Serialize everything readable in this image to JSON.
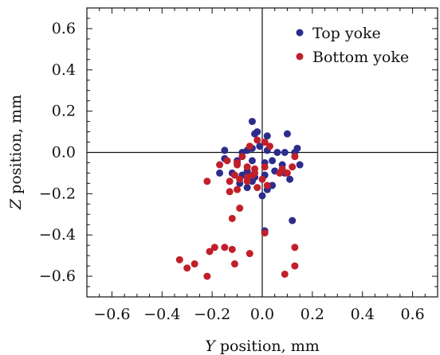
{
  "chart_data": {
    "type": "scatter",
    "xlabel_var": "Y",
    "xlabel_rest": " position, mm",
    "ylabel_var": "Z",
    "ylabel_rest": " position, mm",
    "xlim": [
      -0.7,
      0.7
    ],
    "ylim": [
      -0.7,
      0.7
    ],
    "xticks": [
      -0.6,
      -0.4,
      -0.2,
      0.0,
      0.2,
      0.4,
      0.6
    ],
    "xtick_labels": [
      "−0.6",
      "−0.4",
      "−0.2",
      "0.0",
      "0.2",
      "0.4",
      "0.6"
    ],
    "yticks": [
      0.6,
      0.4,
      0.2,
      0.0,
      -0.2,
      -0.4,
      -0.6
    ],
    "ytick_labels": [
      "0.6",
      "0.4",
      "0.2",
      "0.0",
      "−0.2",
      "−0.4",
      "−0.6"
    ],
    "grid": false,
    "crosshair_at_zero": true,
    "legend_position": "top-right",
    "series": [
      {
        "name": "Top yoke",
        "color": "#2c2c8c",
        "points": [
          [
            -0.04,
            0.15
          ],
          [
            -0.02,
            0.1
          ],
          [
            -0.03,
            0.09
          ],
          [
            0.02,
            0.08
          ],
          [
            0.1,
            0.09
          ],
          [
            -0.15,
            0.01
          ],
          [
            -0.08,
            0.0
          ],
          [
            -0.06,
            0.01
          ],
          [
            -0.04,
            0.02
          ],
          [
            -0.01,
            0.03
          ],
          [
            0.02,
            0.01
          ],
          [
            0.06,
            0.0
          ],
          [
            0.09,
            0.0
          ],
          [
            0.14,
            0.02
          ],
          [
            -0.15,
            -0.03
          ],
          [
            -0.1,
            -0.04
          ],
          [
            -0.04,
            -0.04
          ],
          [
            0.01,
            -0.05
          ],
          [
            0.04,
            -0.04
          ],
          [
            0.08,
            -0.06
          ],
          [
            0.15,
            -0.06
          ],
          [
            -0.17,
            -0.1
          ],
          [
            -0.12,
            -0.1
          ],
          [
            -0.08,
            -0.11
          ],
          [
            -0.06,
            -0.09
          ],
          [
            -0.03,
            -0.12
          ],
          [
            0.01,
            -0.11
          ],
          [
            0.05,
            -0.09
          ],
          [
            0.09,
            -0.1
          ],
          [
            -0.09,
            -0.15
          ],
          [
            -0.06,
            -0.17
          ],
          [
            -0.04,
            -0.14
          ],
          [
            0.04,
            -0.16
          ],
          [
            0.11,
            -0.13
          ],
          [
            0.0,
            -0.21
          ],
          [
            0.02,
            -0.18
          ],
          [
            0.12,
            -0.33
          ],
          [
            0.01,
            -0.38
          ],
          [
            0.13,
            0.0
          ]
        ]
      },
      {
        "name": "Bottom yoke",
        "color": "#c0202a",
        "points": [
          [
            -0.02,
            0.06
          ],
          [
            0.01,
            0.05
          ],
          [
            0.03,
            0.03
          ],
          [
            -0.05,
            0.03
          ],
          [
            -0.08,
            -0.02
          ],
          [
            -0.14,
            -0.04
          ],
          [
            -0.17,
            -0.06
          ],
          [
            -0.1,
            -0.06
          ],
          [
            -0.1,
            -0.05
          ],
          [
            -0.06,
            -0.07
          ],
          [
            -0.03,
            -0.08
          ],
          [
            0.01,
            -0.07
          ],
          [
            0.08,
            -0.08
          ],
          [
            0.12,
            -0.07
          ],
          [
            -0.11,
            -0.11
          ],
          [
            -0.06,
            -0.12
          ],
          [
            -0.04,
            -0.11
          ],
          [
            -0.03,
            -0.1
          ],
          [
            0.0,
            -0.13
          ],
          [
            0.07,
            -0.1
          ],
          [
            0.1,
            -0.1
          ],
          [
            0.13,
            -0.02
          ],
          [
            -0.22,
            -0.14
          ],
          [
            -0.13,
            -0.14
          ],
          [
            -0.09,
            -0.13
          ],
          [
            -0.06,
            -0.14
          ],
          [
            -0.02,
            -0.17
          ],
          [
            0.02,
            -0.16
          ],
          [
            -0.13,
            -0.19
          ],
          [
            -0.1,
            -0.18
          ],
          [
            -0.09,
            -0.27
          ],
          [
            -0.12,
            -0.32
          ],
          [
            0.01,
            -0.39
          ],
          [
            -0.21,
            -0.48
          ],
          [
            -0.19,
            -0.46
          ],
          [
            -0.15,
            -0.46
          ],
          [
            -0.12,
            -0.47
          ],
          [
            -0.05,
            -0.49
          ],
          [
            0.13,
            -0.46
          ],
          [
            -0.33,
            -0.52
          ],
          [
            -0.27,
            -0.54
          ],
          [
            -0.3,
            -0.56
          ],
          [
            -0.11,
            -0.54
          ],
          [
            0.13,
            -0.55
          ],
          [
            -0.22,
            -0.6
          ],
          [
            0.09,
            -0.59
          ]
        ]
      }
    ]
  }
}
